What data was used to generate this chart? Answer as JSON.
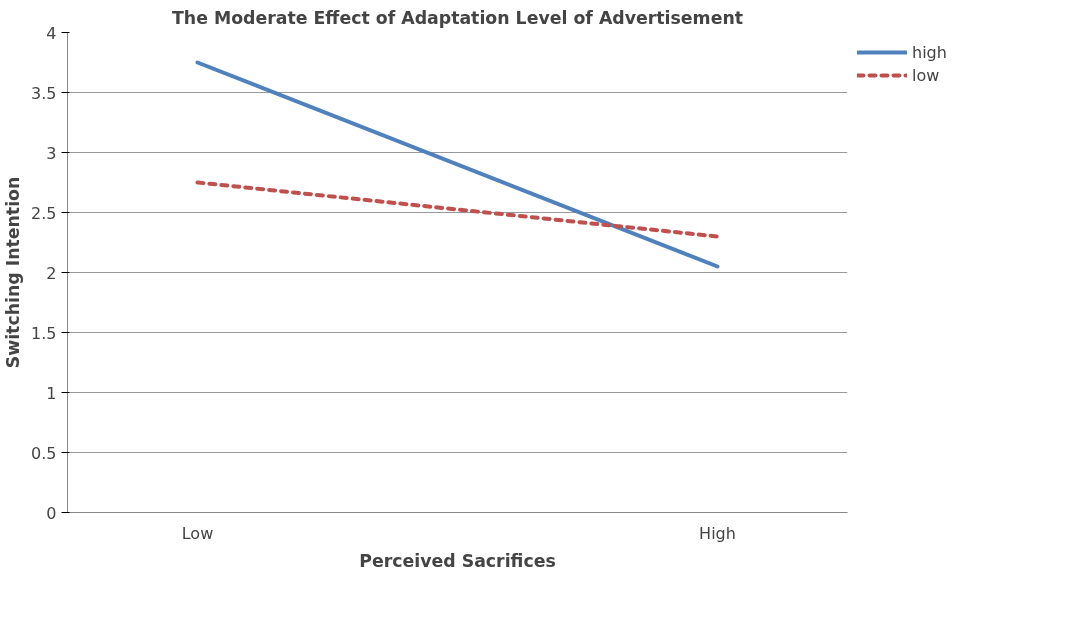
{
  "chart_data": {
    "type": "line",
    "title": "The Moderate Effect of Adaptation Level of Advertisement",
    "xlabel": "Perceived Sacrifices",
    "ylabel": "Switching Intention",
    "categories": [
      "Low",
      "High"
    ],
    "series": [
      {
        "name": "high",
        "color": "#4f81bd",
        "values": [
          3.75,
          2.05
        ],
        "line_style": "solid"
      },
      {
        "name": "low",
        "color": "#c0504d",
        "values": [
          2.75,
          2.3
        ],
        "line_style": "dashed"
      }
    ],
    "ylim": [
      0,
      4
    ],
    "yticks": [
      0,
      0.5,
      1,
      1.5,
      2,
      2.5,
      3,
      3.5,
      4
    ],
    "grid": "y",
    "legend": "right",
    "marker": "none"
  }
}
